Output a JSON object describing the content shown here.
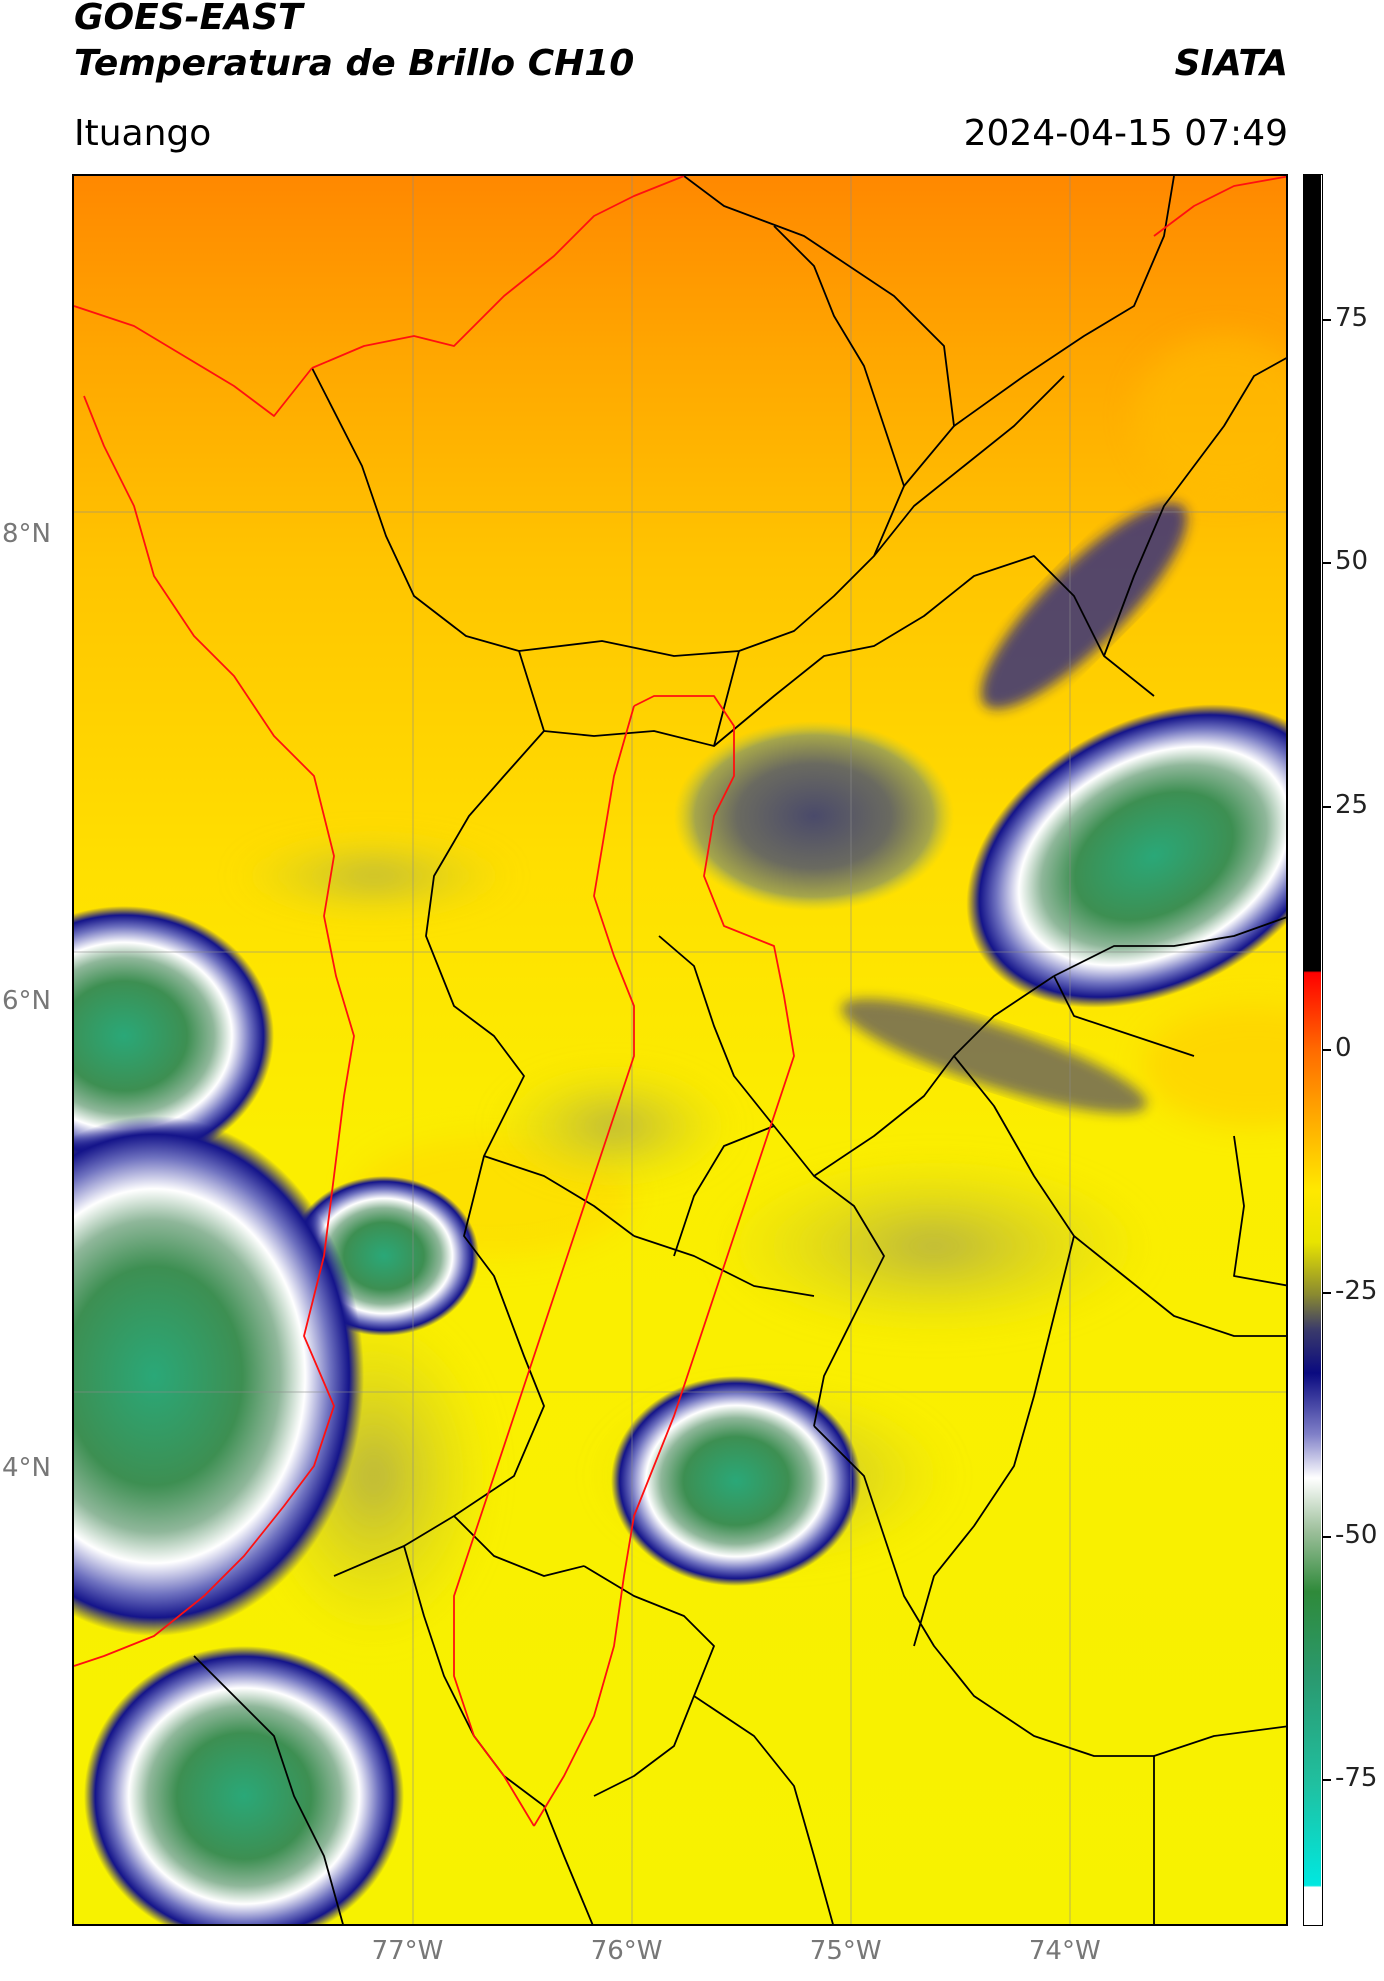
{
  "header": {
    "satellite": "GOES-EAST",
    "product": "Temperatura de Brillo CH10",
    "org": "SIATA",
    "region": "Ituango",
    "datetime": "2024-04-15 07:49"
  },
  "map": {
    "lat_range": [
      2.05,
      9.55
    ],
    "lon_range": [
      -78.55,
      -73.0
    ],
    "lat_ticks": [
      {
        "value": 8,
        "label": "8°N"
      },
      {
        "value": 6,
        "label": "6°N"
      },
      {
        "value": 4,
        "label": "4°N"
      }
    ],
    "lon_ticks": [
      {
        "value": -77,
        "label": "77°W"
      },
      {
        "value": -76,
        "label": "76°W"
      },
      {
        "value": -75,
        "label": "75°W"
      },
      {
        "value": -74,
        "label": "74°W"
      }
    ],
    "grid": true,
    "colors": {
      "warm_north": "#ff8c00",
      "background": "#f5f000",
      "cloud_edge": "#1a1a8c",
      "cloud_mid": "#ffffff",
      "cloud_core": "#2aa070",
      "boundary_red": "#ff0000",
      "boundary_black": "#000000"
    }
  },
  "colorbar": {
    "range": [
      -90,
      90
    ],
    "ticks": [
      {
        "value": 75,
        "label": "75"
      },
      {
        "value": 50,
        "label": "50"
      },
      {
        "value": 25,
        "label": "25"
      },
      {
        "value": 0,
        "label": "0"
      },
      {
        "value": -25,
        "label": "-25"
      },
      {
        "value": -50,
        "label": "-50"
      },
      {
        "value": -75,
        "label": "-75"
      }
    ]
  }
}
